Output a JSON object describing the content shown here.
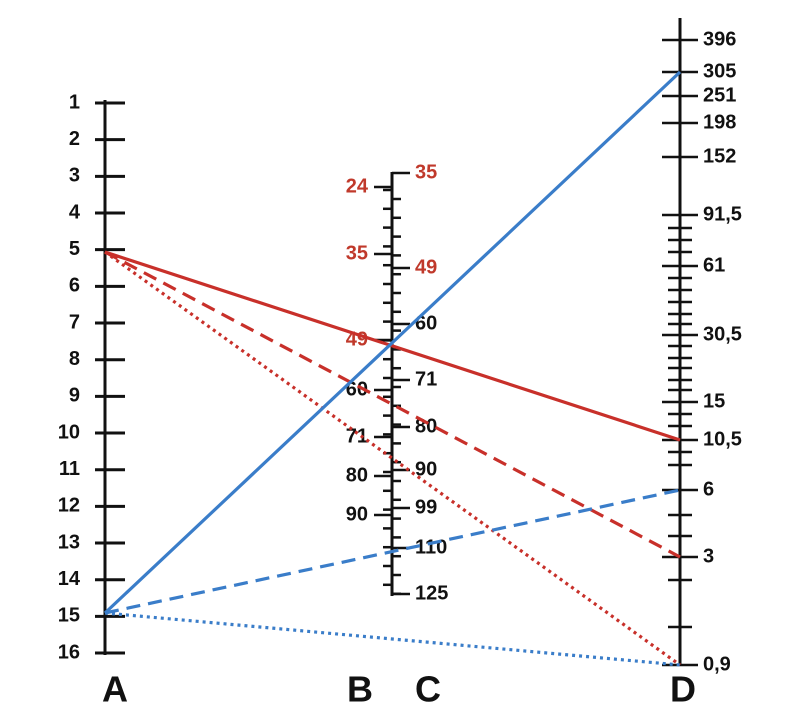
{
  "axes": [
    {
      "name": "A",
      "labels": [
        {
          "text": "1"
        },
        {
          "text": "2"
        },
        {
          "text": "3"
        },
        {
          "text": "4"
        },
        {
          "text": "5"
        },
        {
          "text": "6"
        },
        {
          "text": "7"
        },
        {
          "text": "8"
        },
        {
          "text": "9"
        },
        {
          "text": "10"
        },
        {
          "text": "11"
        },
        {
          "text": "12"
        },
        {
          "text": "13"
        },
        {
          "text": "14"
        },
        {
          "text": "15"
        },
        {
          "text": "16"
        }
      ]
    },
    {
      "name": "B",
      "labels": [
        {
          "text": "24",
          "color": "#c0392b"
        },
        {
          "text": "35",
          "color": "#c0392b"
        },
        {
          "text": "49",
          "color": "#c0392b"
        },
        {
          "text": "60",
          "color": "#111111"
        },
        {
          "text": "71",
          "color": "#111111"
        },
        {
          "text": "80",
          "color": "#111111"
        },
        {
          "text": "90",
          "color": "#111111"
        }
      ]
    },
    {
      "name": "C",
      "labels": [
        {
          "text": "35",
          "color": "#c0392b"
        },
        {
          "text": "49",
          "color": "#c0392b"
        },
        {
          "text": "60",
          "color": "#111111"
        },
        {
          "text": "71",
          "color": "#111111"
        },
        {
          "text": "80",
          "color": "#111111"
        },
        {
          "text": "90",
          "color": "#111111"
        },
        {
          "text": "99",
          "color": "#111111"
        },
        {
          "text": "110",
          "color": "#111111"
        },
        {
          "text": "125",
          "color": "#111111"
        }
      ]
    },
    {
      "name": "D",
      "labels": [
        {
          "text": "396"
        },
        {
          "text": "305"
        },
        {
          "text": "251"
        },
        {
          "text": "198"
        },
        {
          "text": "152"
        },
        {
          "text": "91,5"
        },
        {
          "text": "61"
        },
        {
          "text": "30,5"
        },
        {
          "text": "15"
        },
        {
          "text": "10,5"
        },
        {
          "text": "6"
        },
        {
          "text": "3"
        },
        {
          "text": "0,9"
        }
      ]
    }
  ]
}
